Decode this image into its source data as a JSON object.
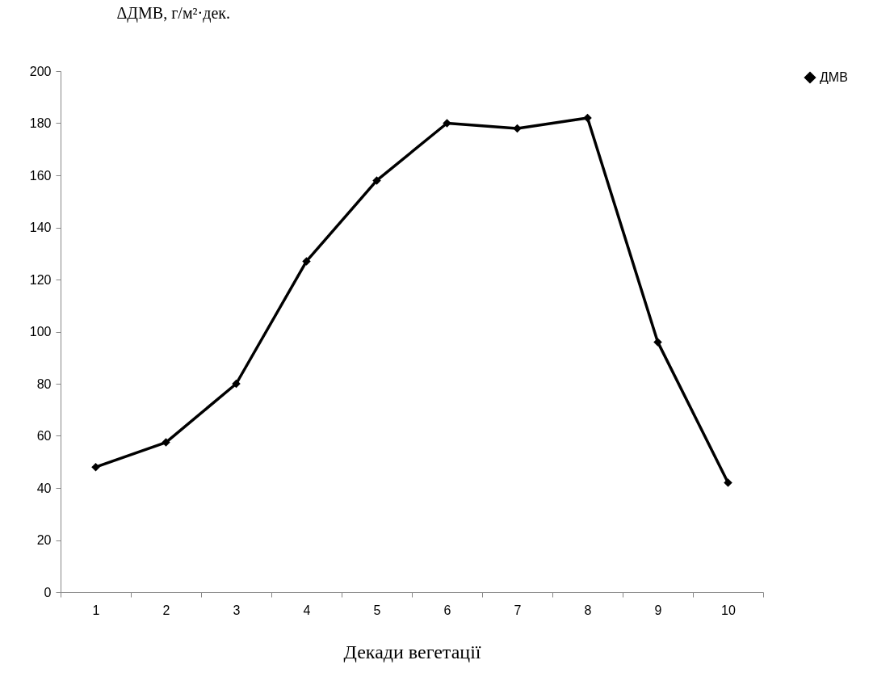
{
  "chart_data": {
    "type": "line",
    "ylabel": "ΔДМВ,  г/м²·дек.",
    "xlabel": "Декади вегетації",
    "categories": [
      "1",
      "2",
      "3",
      "4",
      "5",
      "6",
      "7",
      "8",
      "9",
      "10"
    ],
    "series": [
      {
        "name": "ДМВ",
        "color": "#000000",
        "values": [
          48,
          57.5,
          80,
          127,
          158,
          180,
          178,
          182,
          96,
          42
        ]
      }
    ],
    "ylim": [
      0,
      200
    ],
    "yticks": [
      0,
      20,
      40,
      60,
      80,
      100,
      120,
      140,
      160,
      180,
      200
    ],
    "legend": "right",
    "marker": "diamond",
    "line_style": "solid"
  }
}
